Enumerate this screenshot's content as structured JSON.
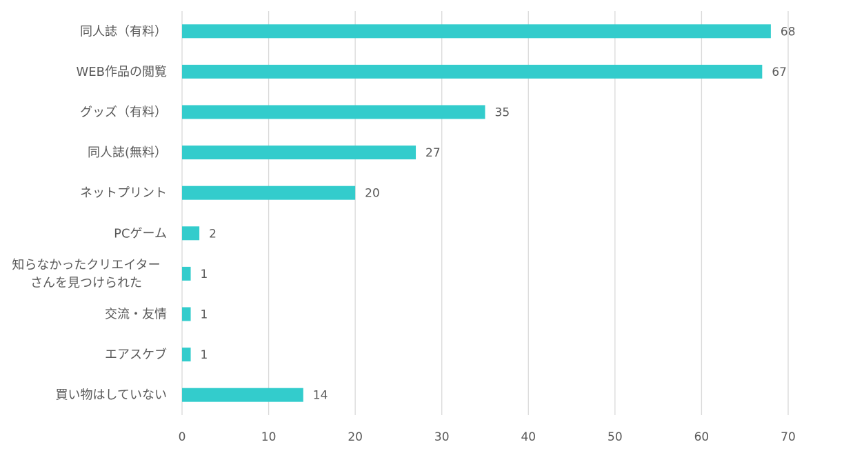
{
  "chart_data": {
    "type": "bar",
    "orientation": "horizontal",
    "title": "",
    "xlabel": "",
    "ylabel": "",
    "categories": [
      "同人誌（有料）",
      "WEB作品の閲覧",
      "グッズ（有料）",
      "同人誌(無料）",
      "ネットプリント",
      "PCゲーム",
      "知らなかったクリエイター\nさんを見つけられた",
      "交流・友情",
      "エアスケブ",
      "買い物はしていない"
    ],
    "values": [
      68,
      67,
      35,
      27,
      20,
      2,
      1,
      1,
      1,
      14
    ],
    "data_labels": [
      "68",
      "67",
      "35",
      "27",
      "20",
      "2",
      "1",
      "1",
      "1",
      "14"
    ],
    "xlim": [
      0,
      70
    ],
    "ticks": [
      "0",
      "10",
      "20",
      "30",
      "40",
      "50",
      "60",
      "70"
    ],
    "grid": "vertical",
    "legend": "none",
    "colors": {
      "bar": "#33CCCC",
      "grid": "#D9D9D9",
      "text": "#595959"
    }
  }
}
